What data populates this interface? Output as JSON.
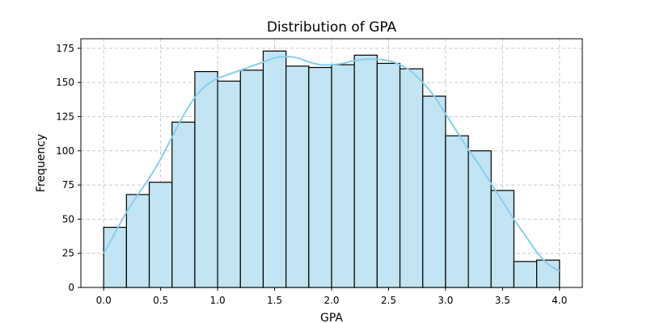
{
  "chart_data": {
    "type": "bar",
    "title": "Distribution of GPA",
    "xlabel": "GPA",
    "ylabel": "Frequency",
    "xlim": [
      -0.2,
      4.2
    ],
    "ylim": [
      0,
      182
    ],
    "grid": true,
    "x_ticks": [
      0.0,
      0.5,
      1.0,
      1.5,
      2.0,
      2.5,
      3.0,
      3.5,
      4.0
    ],
    "x_tick_labels": [
      "0.0",
      "0.5",
      "1.0",
      "1.5",
      "2.0",
      "2.5",
      "3.0",
      "3.5",
      "4.0"
    ],
    "y_ticks": [
      0,
      25,
      50,
      75,
      100,
      125,
      150,
      175
    ],
    "y_tick_labels": [
      "0",
      "25",
      "50",
      "75",
      "100",
      "125",
      "150",
      "175"
    ],
    "bin_edges": [
      0.0,
      0.2,
      0.4,
      0.6,
      0.8,
      1.0,
      1.2,
      1.4,
      1.6,
      1.8,
      2.0,
      2.2,
      2.4,
      2.6,
      2.8,
      3.0,
      3.2,
      3.4,
      3.6,
      3.8,
      4.0
    ],
    "values": [
      44,
      68,
      77,
      121,
      158,
      151,
      159,
      173,
      162,
      161,
      163,
      170,
      164,
      160,
      140,
      111,
      100,
      71,
      19,
      20
    ],
    "kde": {
      "x": [
        0.0,
        0.1,
        0.2,
        0.3,
        0.4,
        0.5,
        0.6,
        0.7,
        0.8,
        0.9,
        1.0,
        1.1,
        1.2,
        1.3,
        1.4,
        1.5,
        1.6,
        1.7,
        1.8,
        1.9,
        2.0,
        2.1,
        2.2,
        2.3,
        2.4,
        2.5,
        2.6,
        2.7,
        2.8,
        2.9,
        3.0,
        3.1,
        3.2,
        3.3,
        3.4,
        3.5,
        3.6,
        3.7,
        3.8,
        3.9,
        4.0
      ],
      "y": [
        25,
        40,
        55,
        68,
        80,
        94,
        110,
        126,
        139,
        148,
        153,
        156,
        159,
        162,
        165,
        168,
        169,
        168,
        165,
        163,
        163,
        164,
        166,
        167,
        167,
        166,
        163,
        158,
        150,
        140,
        127,
        114,
        101,
        89,
        76,
        63,
        50,
        38,
        26,
        17,
        12
      ]
    },
    "colors": {
      "bar_fill": "#c2e4f3",
      "bar_edge": "#000000",
      "kde_line": "#87ceeb"
    }
  }
}
